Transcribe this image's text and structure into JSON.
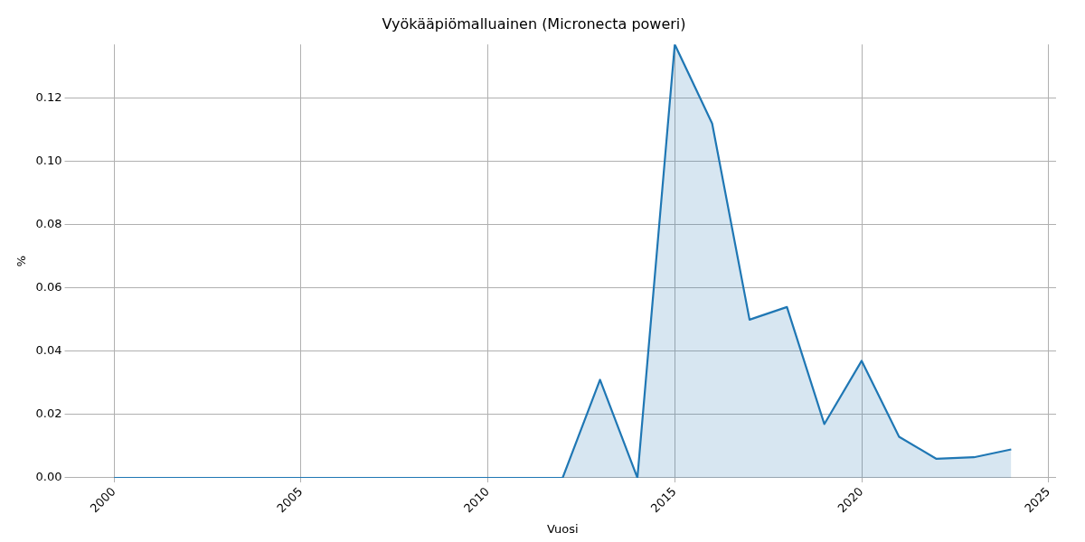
{
  "chart_data": {
    "type": "area",
    "title": "Vyökääpiömalluainen (Micronecta poweri)",
    "xlabel": "Vuosi",
    "ylabel": "%",
    "x": [
      2000,
      2001,
      2002,
      2003,
      2004,
      2005,
      2006,
      2007,
      2008,
      2009,
      2010,
      2011,
      2012,
      2013,
      2014,
      2015,
      2016,
      2017,
      2018,
      2019,
      2020,
      2021,
      2022,
      2023,
      2024
    ],
    "series": [
      {
        "color": "#1f77b4",
        "values": [
          0,
          0,
          0,
          0,
          0,
          0,
          0,
          0,
          0,
          0,
          0,
          0,
          0,
          0.031,
          0,
          0.137,
          0.112,
          0.05,
          0.054,
          0.017,
          0.037,
          0.013,
          0.006,
          0.0065,
          0.009
        ]
      }
    ],
    "xlim": [
      1998.8,
      2025.2
    ],
    "xticks": [
      2000,
      2005,
      2010,
      2015,
      2020,
      2025
    ],
    "ylim": [
      0,
      0.137
    ],
    "yticks": [
      {
        "value": 0,
        "label": "0.00"
      },
      {
        "value": 0.02,
        "label": "0.02"
      },
      {
        "value": 0.04,
        "label": "0.04"
      },
      {
        "value": 0.06,
        "label": "0.06"
      },
      {
        "value": 0.08,
        "label": "0.08"
      },
      {
        "value": 0.1,
        "label": "0.10"
      },
      {
        "value": 0.12,
        "label": "0.12"
      }
    ],
    "grid": true
  }
}
